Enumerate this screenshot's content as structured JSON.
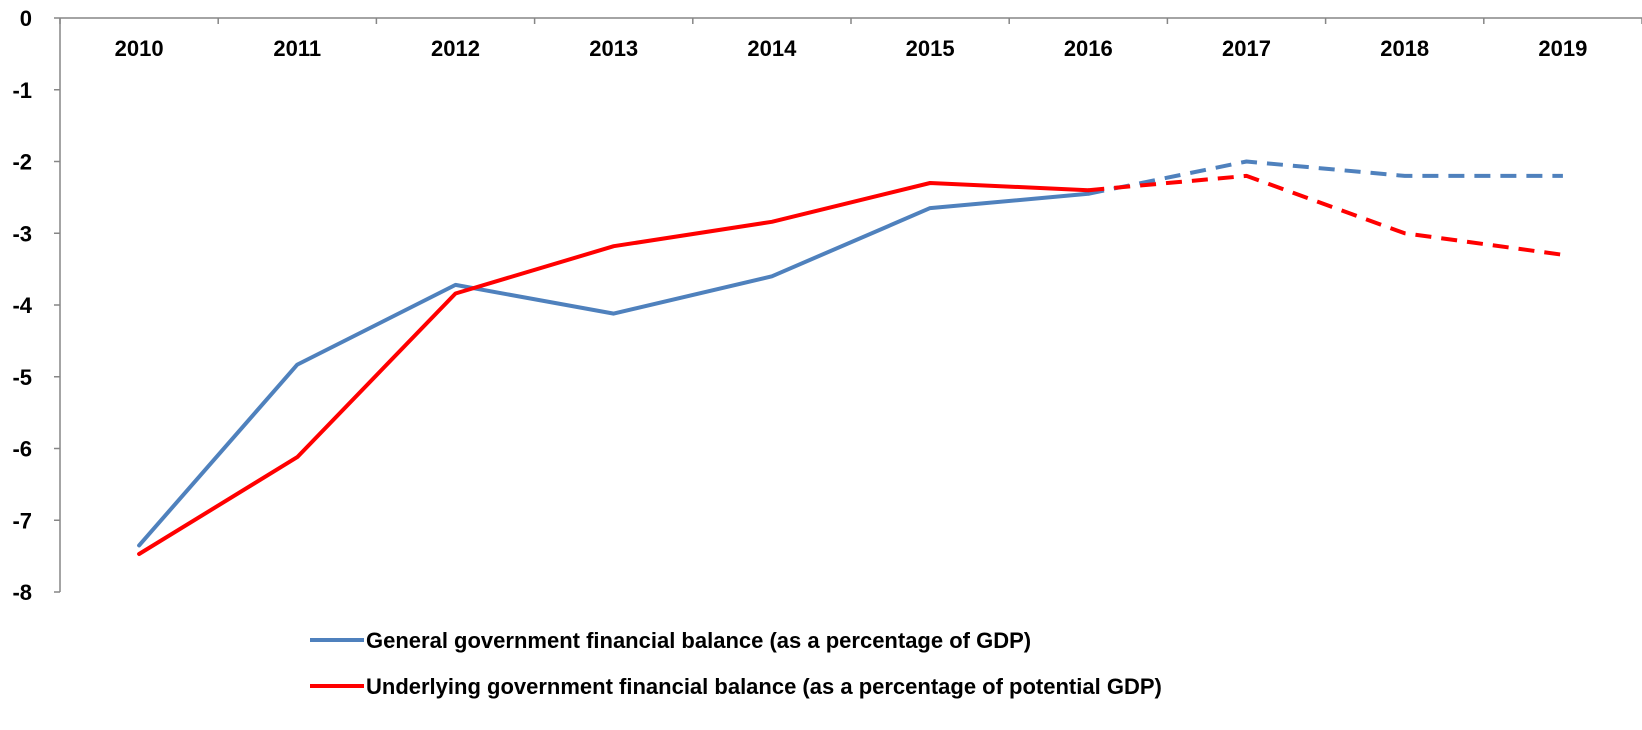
{
  "chart_data": {
    "type": "line",
    "x": [
      "2010",
      "2011",
      "2012",
      "2013",
      "2014",
      "2015",
      "2016",
      "2017",
      "2018",
      "2019"
    ],
    "ylim": [
      -8,
      0
    ],
    "y_ticks": [
      "0",
      "-1",
      "-2",
      "-3",
      "-4",
      "-5",
      "-6",
      "-7",
      "-8"
    ],
    "grid": false,
    "legend_position": "bottom",
    "series": [
      {
        "name": "General government financial balance (as a percentage of GDP)",
        "color": "#4f81bd",
        "actual": [
          -7.35,
          -4.83,
          -3.72,
          -4.12,
          -3.6,
          -2.65,
          -2.45,
          null,
          null,
          null
        ],
        "forecast": [
          null,
          null,
          null,
          null,
          null,
          null,
          -2.45,
          -2.0,
          -2.2,
          -2.2
        ]
      },
      {
        "name": "Underlying government financial balance (as a percentage of potential GDP)",
        "color": "#ff0000",
        "actual": [
          -7.47,
          -6.12,
          -3.84,
          -3.18,
          -2.84,
          -2.3,
          -2.4,
          null,
          null,
          null
        ],
        "forecast": [
          null,
          null,
          null,
          null,
          null,
          null,
          -2.4,
          -2.2,
          -3.0,
          -3.3
        ]
      }
    ]
  }
}
